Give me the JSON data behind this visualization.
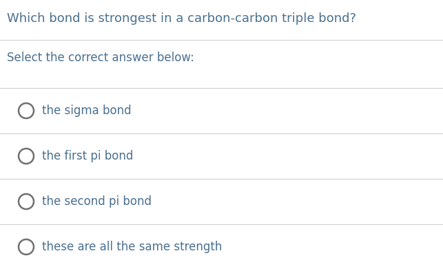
{
  "question": "Which bond is strongest in a carbon-carbon triple bond?",
  "subtitle": "Select the correct answer below:",
  "options": [
    "the sigma bond",
    "the first pi bond",
    "the second pi bond",
    "these are all the same strength"
  ],
  "bg_color": "#ffffff",
  "text_color": "#4a7090",
  "line_color": "#d0d0d0",
  "question_fontsize": 13,
  "subtitle_fontsize": 12,
  "option_fontsize": 12,
  "circle_color": "#707070",
  "fig_width": 6.43,
  "fig_height": 3.94,
  "dpi": 100
}
